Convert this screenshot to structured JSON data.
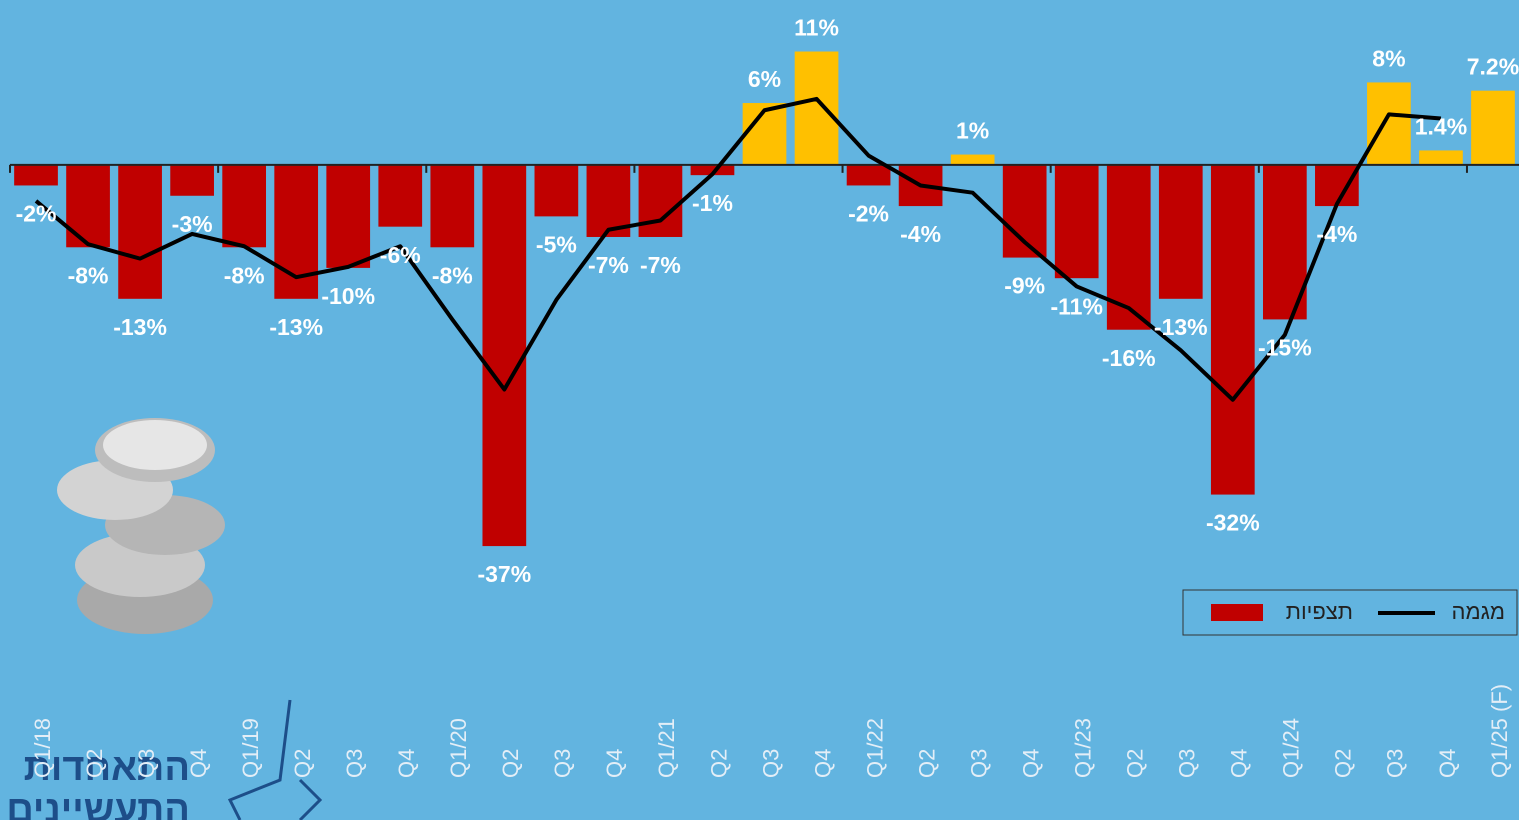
{
  "chart_data": {
    "type": "bar",
    "categories": [
      "Q1/18",
      "Q2",
      "Q3",
      "Q4",
      "Q1/19",
      "Q2",
      "Q3",
      "Q4",
      "Q1/20",
      "Q2",
      "Q3",
      "Q4",
      "Q1/21",
      "Q2",
      "Q3",
      "Q4",
      "Q1/22",
      "Q2",
      "Q3",
      "Q4",
      "Q1/23",
      "Q2",
      "Q3",
      "Q4",
      "Q1/24",
      "Q2",
      "Q3",
      "Q4",
      "Q1/25 (F)"
    ],
    "series": [
      {
        "name": "תצפיות",
        "color": "#c00000",
        "positive_color": "#ffc000",
        "values": [
          -2,
          -8,
          -13,
          -3,
          -8,
          -13,
          -10,
          -6,
          -8,
          -37,
          -5,
          -7,
          -7,
          -1,
          6,
          11,
          -2,
          -4,
          1,
          -9,
          -11,
          -16,
          -13,
          -32,
          -15,
          -4,
          8,
          1.4,
          7.2
        ],
        "value_labels": [
          "-2%",
          "-8%",
          "-13%",
          "-3%",
          "-8%",
          "-13%",
          "-10%",
          "-6%",
          "-8%",
          "-37%",
          "-5%",
          "-7%",
          "-7%",
          "-1%",
          "6%",
          "11%",
          "-2%",
          "-4%",
          "1%",
          "-9%",
          "-11%",
          "-16%",
          "-13%",
          "-32%",
          "-15%",
          "-4%",
          "8%",
          "1.4%",
          "7.2%"
        ]
      },
      {
        "name": "מגמה",
        "color": "#000000",
        "type": "line",
        "values": [
          -3.5,
          -7.7,
          -9.1,
          -6.7,
          -7.9,
          -10.9,
          -9.9,
          -7.9,
          -15,
          -21.8,
          -13.1,
          -6.3,
          -5.4,
          -0.9,
          5.3,
          6.4,
          0.9,
          -2,
          -2.7,
          -7.5,
          -11.8,
          -13.9,
          -18,
          -22.8,
          -16.5,
          -3.8,
          4.9,
          4.5,
          null
        ]
      }
    ],
    "ylim": [
      -40,
      16
    ],
    "legend": "bottom-right",
    "logo_text": [
      "התאחדות",
      "התעשיינים"
    ]
  }
}
